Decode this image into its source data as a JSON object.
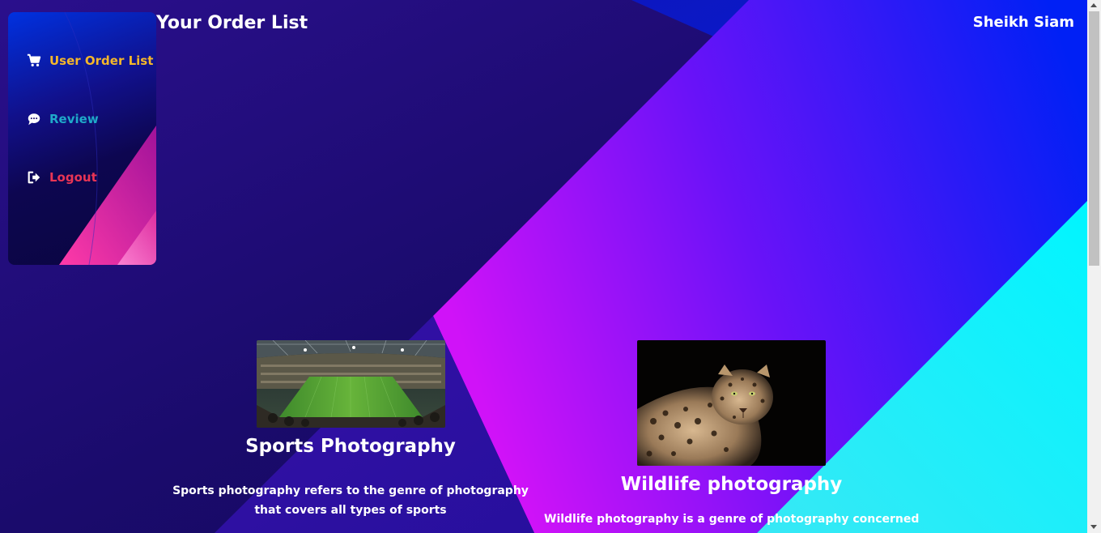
{
  "header": {
    "page_title": "Your Order List",
    "user_name": "Sheikh Siam"
  },
  "sidebar": {
    "items": [
      {
        "label": "User Order List",
        "icon": "cart-icon",
        "color": "#f5b72a"
      },
      {
        "label": "Review",
        "icon": "comment-icon",
        "color": "#1fa9c9"
      },
      {
        "label": "Logout",
        "icon": "sign-out-icon",
        "color": "#ea3555"
      }
    ]
  },
  "orders": [
    {
      "title": "Sports Photography",
      "description": "Sports photography refers to the genre of photography that covers all types of sports",
      "image": "stadium-image"
    },
    {
      "title": "Wildlife photography",
      "description": "Wildlife photography is a genre of photography concerned",
      "image": "leopard-image"
    }
  ],
  "theme": {
    "background_dark": "#1f0f7a",
    "magenta": "#c814f5",
    "blue": "#0020f5",
    "cyan": "#10f0f8"
  }
}
